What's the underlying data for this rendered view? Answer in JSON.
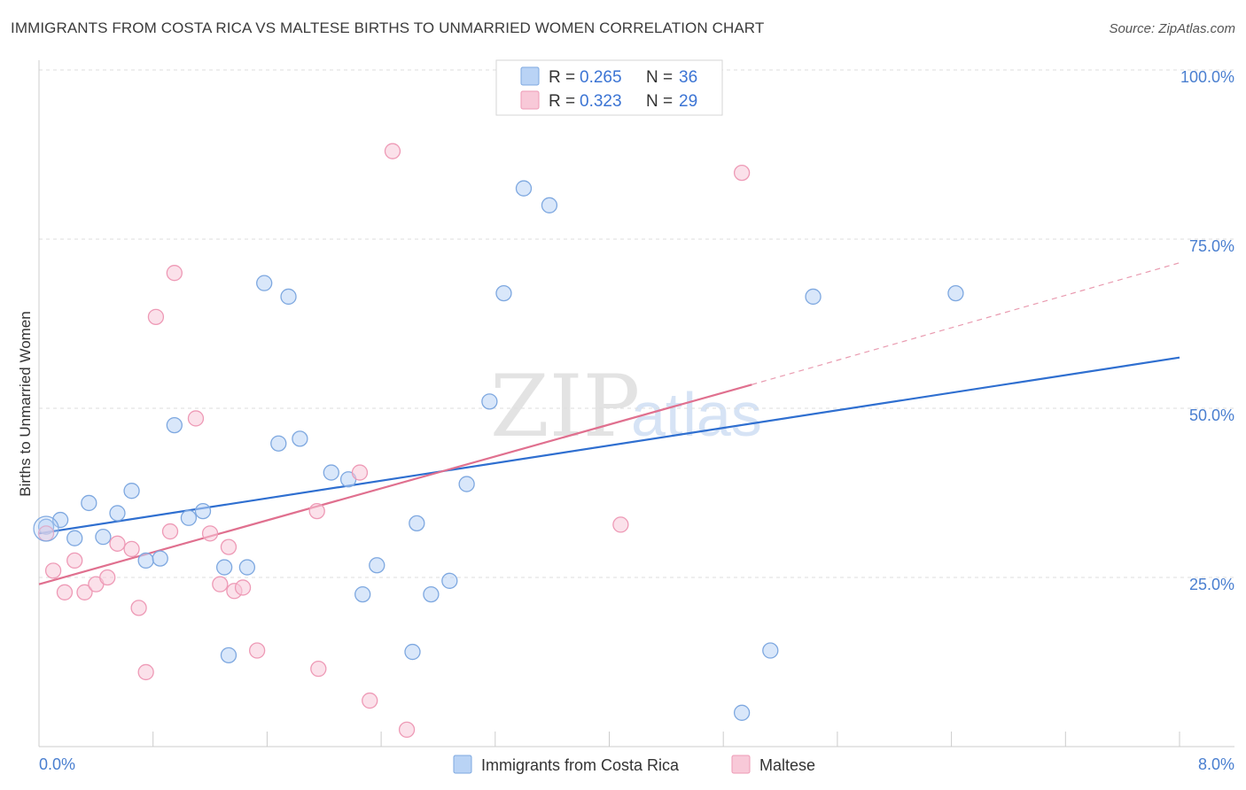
{
  "header": {
    "title": "IMMIGRANTS FROM COSTA RICA VS MALTESE BIRTHS TO UNMARRIED WOMEN CORRELATION CHART",
    "source": "Source: ZipAtlas.com"
  },
  "watermark": {
    "part1": "ZIP",
    "part2": "atlas"
  },
  "colors": {
    "blue_fill": "#b9d3f5",
    "blue_stroke": "#7ea8e0",
    "blue_line": "#2f6fd0",
    "pink_fill": "#f8c9d8",
    "pink_stroke": "#ee9ab6",
    "pink_line": "#e0708f",
    "axis_label": "#4a7fd0",
    "grid": "#dcdcdc"
  },
  "chart_data": {
    "type": "scatter",
    "ylabel": "Births to Unmarried Women",
    "xlim": [
      0,
      8
    ],
    "ylim": [
      0,
      100
    ],
    "x_tick_labels": {
      "min": "0.0%",
      "max": "8.0%"
    },
    "y_ticks": [
      {
        "value": 25,
        "label": "25.0%"
      },
      {
        "value": 50,
        "label": "50.0%"
      },
      {
        "value": 75,
        "label": "75.0%"
      },
      {
        "value": 100,
        "label": "100.0%"
      }
    ],
    "legend": [
      {
        "r_label": "R =",
        "r_value": "0.265",
        "n_label": "N =",
        "n_value": "36"
      },
      {
        "r_label": "R =",
        "r_value": "0.323",
        "n_label": "N =",
        "n_value": "29"
      }
    ],
    "series": [
      {
        "name": "Immigrants from Costa Rica",
        "color": "blue",
        "trend": {
          "x0": 0,
          "y0": 31.5,
          "x1": 8,
          "y1": 57.5
        },
        "points": [
          [
            0.05,
            32.5
          ],
          [
            0.15,
            33.5
          ],
          [
            0.25,
            30.8
          ],
          [
            0.35,
            36.0
          ],
          [
            0.45,
            31.0
          ],
          [
            0.55,
            34.5
          ],
          [
            0.65,
            37.8
          ],
          [
            0.75,
            27.5
          ],
          [
            0.85,
            27.8
          ],
          [
            0.95,
            47.5
          ],
          [
            1.05,
            33.8
          ],
          [
            1.15,
            34.8
          ],
          [
            1.3,
            26.5
          ],
          [
            1.33,
            13.5
          ],
          [
            1.46,
            26.5
          ],
          [
            1.58,
            68.5
          ],
          [
            1.68,
            44.8
          ],
          [
            1.75,
            66.5
          ],
          [
            1.83,
            45.5
          ],
          [
            2.05,
            40.5
          ],
          [
            2.17,
            39.5
          ],
          [
            2.27,
            22.5
          ],
          [
            2.37,
            26.8
          ],
          [
            2.62,
            14.0
          ],
          [
            2.65,
            33.0
          ],
          [
            2.75,
            22.5
          ],
          [
            2.88,
            24.5
          ],
          [
            3.0,
            38.8
          ],
          [
            3.16,
            51.0
          ],
          [
            3.26,
            67.0
          ],
          [
            3.4,
            82.5
          ],
          [
            3.58,
            80.0
          ],
          [
            4.93,
            5.0
          ],
          [
            5.13,
            14.2
          ],
          [
            5.43,
            66.5
          ],
          [
            6.43,
            67.0
          ]
        ]
      },
      {
        "name": "Maltese",
        "color": "pink",
        "trend": {
          "x0": 0,
          "y0": 24.0,
          "x1": 5.0,
          "y1": 53.5,
          "dash_x1": 8,
          "dash_y1": 71.5
        },
        "points": [
          [
            0.05,
            31.5
          ],
          [
            0.1,
            26.0
          ],
          [
            0.18,
            22.8
          ],
          [
            0.25,
            27.5
          ],
          [
            0.32,
            22.8
          ],
          [
            0.4,
            24.0
          ],
          [
            0.48,
            25.0
          ],
          [
            0.55,
            30.0
          ],
          [
            0.65,
            29.2
          ],
          [
            0.7,
            20.5
          ],
          [
            0.75,
            11.0
          ],
          [
            0.82,
            63.5
          ],
          [
            0.92,
            31.8
          ],
          [
            0.95,
            70.0
          ],
          [
            1.1,
            48.5
          ],
          [
            1.2,
            31.5
          ],
          [
            1.27,
            24.0
          ],
          [
            1.33,
            29.5
          ],
          [
            1.37,
            23.0
          ],
          [
            1.43,
            23.5
          ],
          [
            1.53,
            14.2
          ],
          [
            1.95,
            34.8
          ],
          [
            1.96,
            11.5
          ],
          [
            2.25,
            40.5
          ],
          [
            2.32,
            6.8
          ],
          [
            2.48,
            88.0
          ],
          [
            2.58,
            2.5
          ],
          [
            4.08,
            32.8
          ],
          [
            4.93,
            84.8
          ]
        ]
      }
    ]
  }
}
